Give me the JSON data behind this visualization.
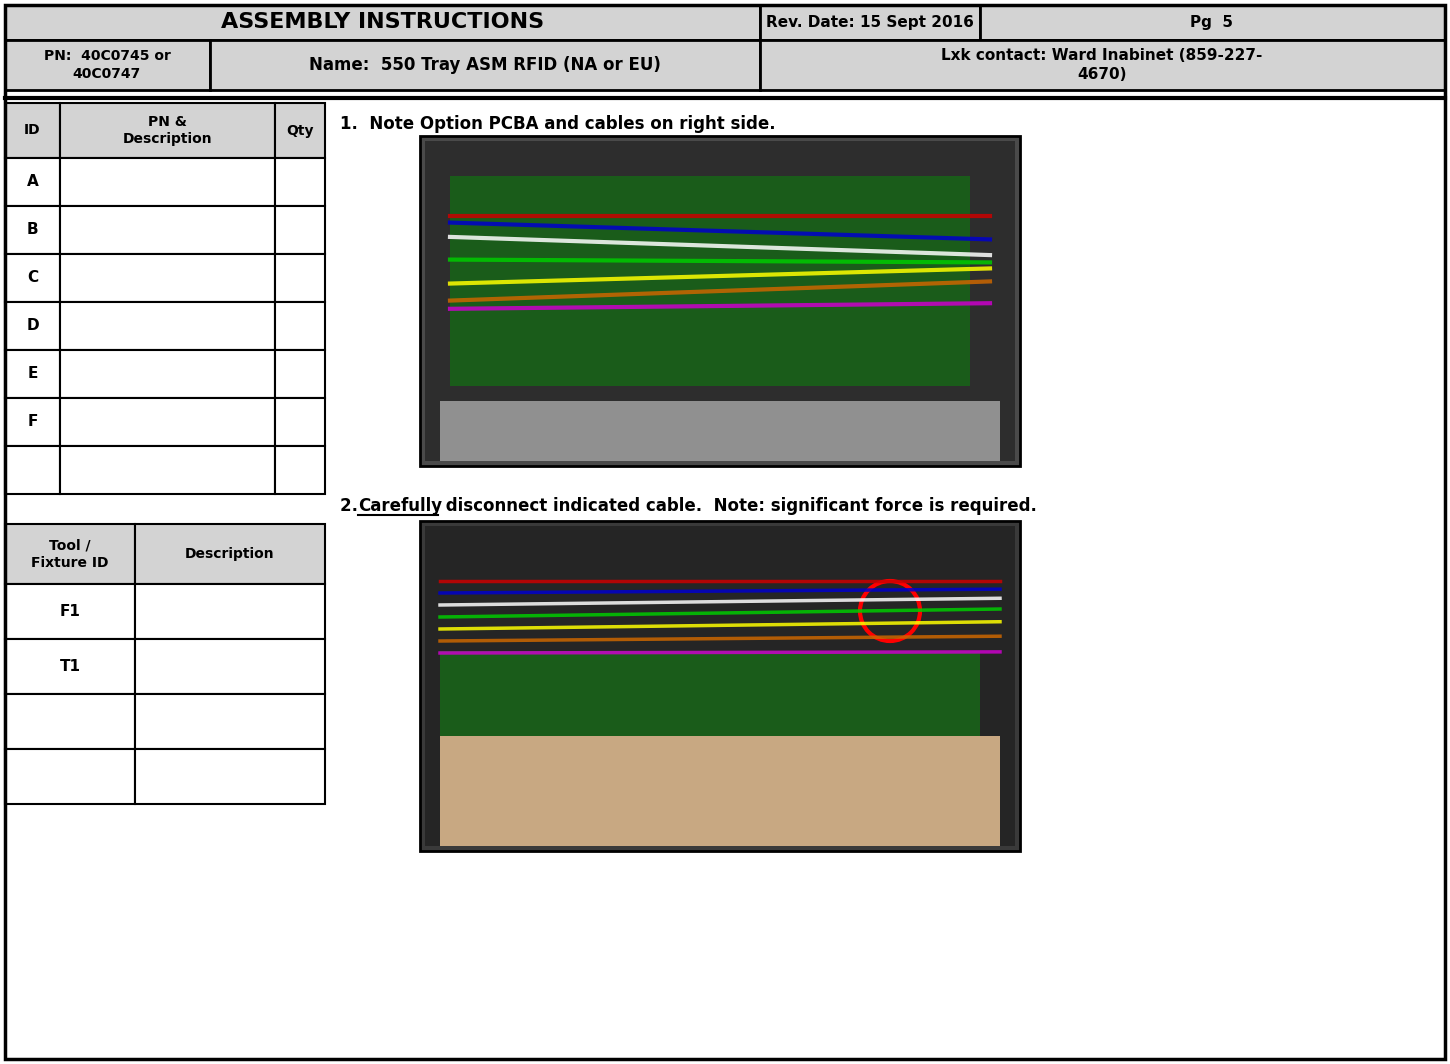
{
  "title": "ASSEMBLY INSTRUCTIONS",
  "rev_date": "Rev. Date: 15 Sept 2016",
  "page": "Pg  5",
  "pn": "PN:  40C0745 or\n40C0747",
  "name": "Name:  550 Tray ASM RFID (NA or EU)",
  "lxk_contact": "Lxk contact: Ward Inabinet (859-227-\n4670)",
  "instruction1": "1.  Note Option PCBA and cables on right side.",
  "instruction2_part1": "2. ",
  "instruction2_underline": "Carefully",
  "instruction2_part2": " disconnect indicated cable.  Note: significant force is required.",
  "table1_headers": [
    "ID",
    "PN &\nDescription",
    "Qty"
  ],
  "table1_rows": [
    "A",
    "B",
    "C",
    "D",
    "E",
    "F",
    ""
  ],
  "table2_headers": [
    "Tool /\nFixture ID",
    "Description"
  ],
  "table2_rows": [
    "F1",
    "T1",
    "",
    ""
  ],
  "header_bg": "#d3d3d3",
  "border_color": "#000000",
  "bg_color": "#ffffff",
  "text_color": "#000000",
  "fig_width": 14.5,
  "fig_height": 10.64
}
